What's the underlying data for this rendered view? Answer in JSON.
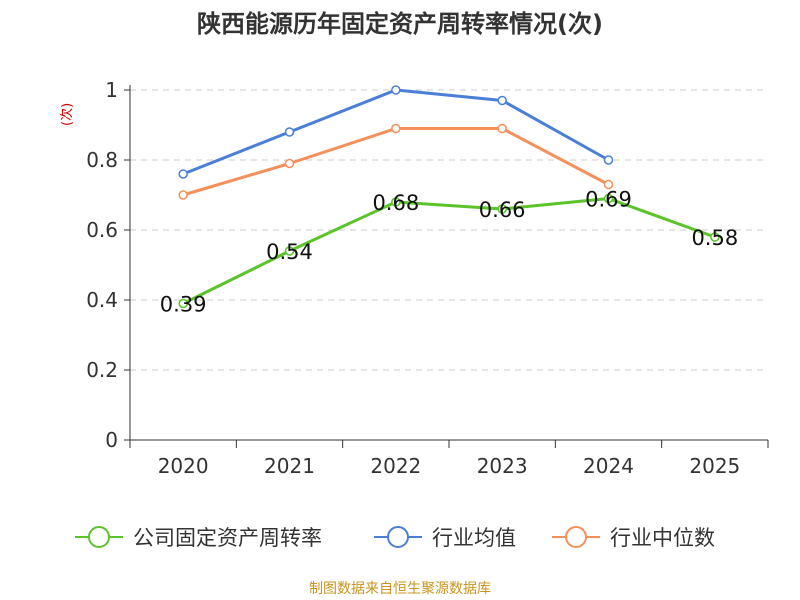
{
  "title": "陕西能源历年固定资产周转率情况(次)",
  "source": "制图数据来自恒生聚源数据库",
  "chart_data": {
    "type": "line",
    "title": "陕西能源历年固定资产周转率情况(次)",
    "ylabel": "(次)",
    "xlabel": "",
    "categories": [
      "2020",
      "2021",
      "2022",
      "2023",
      "2024",
      "2025"
    ],
    "ylim": [
      0,
      1
    ],
    "yticks": [
      0,
      0.2,
      0.4,
      0.6,
      0.8,
      1
    ],
    "ytick_labels": [
      "0",
      "0.2",
      "0.4",
      "0.6",
      "0.8",
      "1"
    ],
    "grid": true,
    "legend_position": "bottom",
    "series": [
      {
        "name": "公司固定资产周转率",
        "color": "#5ac42a",
        "values": [
          0.39,
          0.54,
          0.68,
          0.66,
          0.69,
          0.58
        ],
        "labels": [
          "0.39",
          "0.54",
          "0.68",
          "0.66",
          "0.69",
          "0.58"
        ]
      },
      {
        "name": "行业均值",
        "color": "#4a7fd8",
        "values": [
          0.76,
          0.88,
          1.0,
          0.97,
          0.8,
          null
        ]
      },
      {
        "name": "行业中位数",
        "color": "#f5905b",
        "values": [
          0.7,
          0.79,
          0.89,
          0.89,
          0.73,
          null
        ]
      }
    ]
  }
}
